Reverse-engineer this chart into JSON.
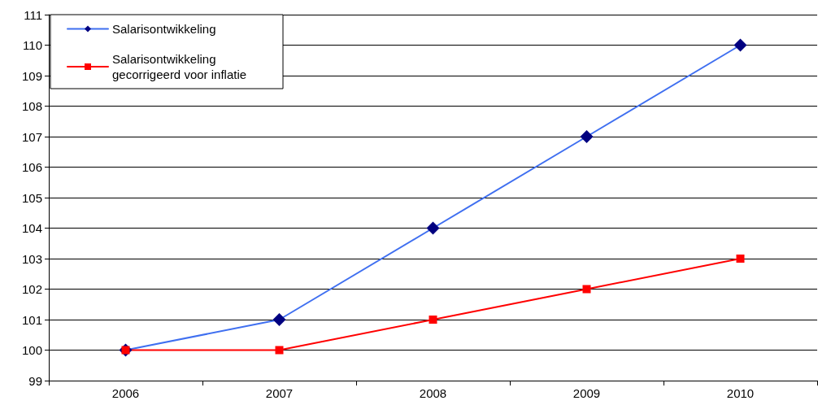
{
  "chart_data": {
    "type": "line",
    "categories": [
      "2006",
      "2007",
      "2008",
      "2009",
      "2010"
    ],
    "series": [
      {
        "name": "Salarisontwikkeling",
        "color": "#3f6ff0",
        "marker": "diamond",
        "values": [
          100,
          101,
          104,
          107,
          110
        ]
      },
      {
        "name": "Salarisontwikkeling gecorrigeerd voor inflatie",
        "color": "#ff0000",
        "marker": "square",
        "values": [
          100,
          100,
          101,
          102,
          103
        ]
      }
    ],
    "ylim": [
      99,
      111
    ],
    "yticks": [
      99,
      100,
      101,
      102,
      103,
      104,
      105,
      106,
      107,
      108,
      109,
      110,
      111
    ],
    "grid": "y",
    "legend": "top left",
    "line_style": "solid"
  }
}
